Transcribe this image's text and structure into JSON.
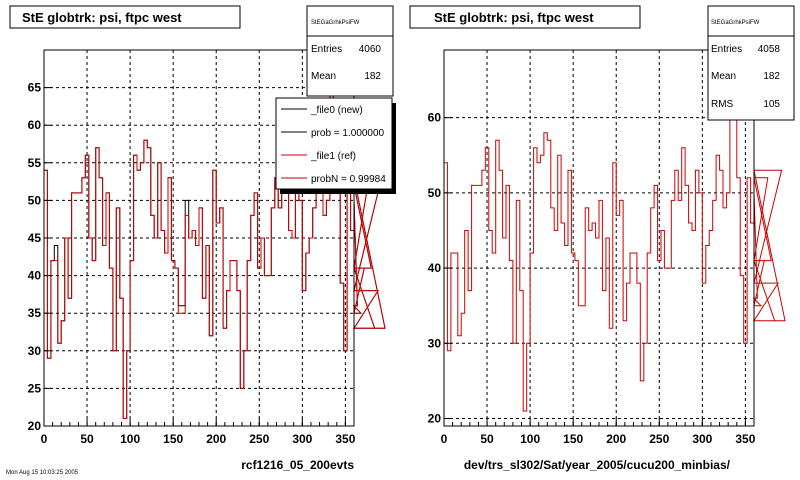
{
  "footer_text": "Mon Aug 15 10:03:25 2005",
  "chart_data": [
    {
      "type": "step",
      "title": "StE globtrk: psi, ftpc west",
      "xlabel": "rcf1216_05_200evts",
      "ylabel": "",
      "xlim": [
        0,
        360
      ],
      "ylim": [
        20,
        70
      ],
      "x_ticks": [
        0,
        50,
        100,
        150,
        200,
        250,
        300,
        350
      ],
      "y_ticks": [
        20,
        25,
        30,
        35,
        40,
        45,
        50,
        55,
        60,
        65
      ],
      "grid": true,
      "bin_width": 4,
      "stats": {
        "header": "StEGaGrhkPsiFW",
        "entries_label": "Entries",
        "entries": "4060",
        "mean_label": "Mean",
        "mean": "182"
      },
      "legend": {
        "placement": "top-right",
        "entries": [
          {
            "label": "_file0 (new)",
            "color": "#000000"
          },
          {
            "label": "prob = 1.000000",
            "color": "#000000"
          },
          {
            "label": "_file1 (ref)",
            "color": "#cc0000"
          },
          {
            "label": "probN = 0.99984",
            "color": "#cc0000"
          }
        ]
      },
      "series": [
        {
          "name": "_file0 (new)",
          "color": "#000000",
          "values": [
            54,
            29,
            42,
            44,
            31,
            34,
            45,
            37,
            51,
            51,
            51,
            53,
            56,
            45,
            42,
            57,
            53,
            44,
            51,
            41,
            30,
            49,
            37,
            21,
            30,
            42,
            56,
            54,
            55,
            58,
            57,
            48,
            45,
            55,
            46,
            43,
            53,
            42,
            41,
            36,
            36,
            50,
            45,
            46,
            44,
            49,
            37,
            44,
            32,
            54,
            47,
            49,
            33,
            38,
            42,
            42,
            38,
            25,
            30,
            42,
            48,
            51,
            41,
            45,
            40,
            40,
            49,
            53,
            49,
            56,
            51,
            46,
            45,
            53,
            50,
            38,
            43,
            45,
            49,
            55,
            53,
            48,
            50,
            66,
            61,
            52,
            39,
            30,
            52,
            46,
            50,
            36,
            35,
            41,
            52,
            41,
            33,
            38,
            53,
            33
          ]
        },
        {
          "name": "_file1 (ref)",
          "color": "#cc0000",
          "values": [
            54,
            29,
            42,
            42,
            31,
            34,
            45,
            37,
            51,
            51,
            51,
            53,
            56,
            45,
            42,
            57,
            53,
            44,
            51,
            41,
            30,
            49,
            37,
            21,
            30,
            42,
            56,
            54,
            55,
            58,
            57,
            48,
            45,
            55,
            46,
            43,
            53,
            42,
            41,
            35,
            35,
            48,
            45,
            46,
            44,
            49,
            37,
            44,
            32,
            54,
            47,
            49,
            33,
            38,
            42,
            42,
            38,
            25,
            30,
            42,
            48,
            51,
            41,
            45,
            40,
            40,
            49,
            53,
            49,
            56,
            51,
            46,
            45,
            53,
            50,
            38,
            43,
            45,
            49,
            55,
            53,
            48,
            50,
            67,
            61,
            52,
            39,
            30,
            52,
            46,
            50,
            36,
            35,
            41,
            52,
            41,
            33,
            38,
            53,
            33
          ]
        }
      ]
    },
    {
      "type": "step",
      "title": "StE globtrk: psi, ftpc west",
      "xlabel": "dev/trs_sl302/Sat/year_2005/cucu200_minbias/",
      "ylabel": "",
      "xlim": [
        0,
        360
      ],
      "ylim": [
        19,
        69
      ],
      "x_ticks": [
        0,
        50,
        100,
        150,
        200,
        250,
        300,
        350
      ],
      "y_ticks": [
        20,
        30,
        40,
        50,
        60
      ],
      "grid": true,
      "bin_width": 4,
      "stats": {
        "header": "StEGaGrhkPsiFW",
        "entries_label": "Entries",
        "entries": "4058",
        "mean_label": "Mean",
        "mean": "182",
        "rms_label": "RMS",
        "rms": "105"
      },
      "series": [
        {
          "name": "_file1 (ref)",
          "color": "#cc0000",
          "values": [
            54,
            29,
            42,
            42,
            31,
            34,
            45,
            37,
            51,
            51,
            51,
            53,
            56,
            45,
            42,
            57,
            53,
            44,
            51,
            41,
            30,
            49,
            37,
            21,
            30,
            42,
            56,
            54,
            55,
            58,
            57,
            48,
            45,
            55,
            46,
            43,
            53,
            42,
            41,
            35,
            35,
            48,
            45,
            46,
            44,
            49,
            37,
            44,
            32,
            54,
            47,
            49,
            33,
            38,
            42,
            42,
            38,
            25,
            30,
            42,
            48,
            51,
            41,
            45,
            40,
            40,
            49,
            53,
            49,
            56,
            51,
            46,
            45,
            53,
            50,
            38,
            43,
            45,
            49,
            55,
            53,
            48,
            50,
            67,
            61,
            52,
            39,
            30,
            52,
            46,
            50,
            36,
            35,
            41,
            52,
            41,
            33,
            38,
            53,
            33
          ]
        }
      ]
    }
  ]
}
